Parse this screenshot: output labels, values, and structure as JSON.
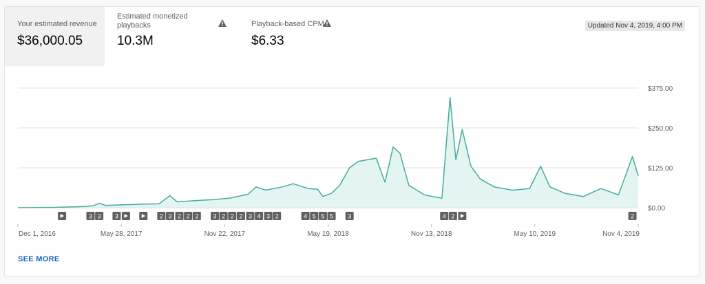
{
  "metrics": [
    {
      "label": "Your estimated revenue",
      "value": "$36,000.05",
      "selected": true,
      "warning": false
    },
    {
      "label": "Estimated monetized playbacks",
      "value": "10.3M",
      "selected": false,
      "warning": true
    },
    {
      "label": "Playback-based CPM",
      "value": "$6.33",
      "selected": false,
      "warning": true
    }
  ],
  "updated": "Updated Nov 4, 2019, 4:00 PM",
  "see_more": "SEE MORE",
  "colors": {
    "line": "#42ad9e",
    "fill": "#e3f4f1",
    "grid": "#e0e0e0",
    "marker": "#606060"
  },
  "chart_data": {
    "type": "area",
    "y_ticks": [
      "$375.00",
      "$250.00",
      "$125.00",
      "$0.00"
    ],
    "y_tick_values": [
      375,
      250,
      125,
      0
    ],
    "ylim": [
      0,
      375
    ],
    "x_ticks": [
      "Dec 1, 2016",
      "May 28, 2017",
      "Nov 22, 2017",
      "May 19, 2018",
      "Nov 13, 2018",
      "May 10, 2019",
      "Nov 4, 2019"
    ],
    "x_range": [
      "2016-12-01",
      "2019-11-04"
    ],
    "series": [
      {
        "points": [
          [
            "2016-12-01",
            0
          ],
          [
            "2017-02-01",
            1
          ],
          [
            "2017-03-15",
            3
          ],
          [
            "2017-04-10",
            6
          ],
          [
            "2017-04-20",
            14
          ],
          [
            "2017-05-01",
            7
          ],
          [
            "2017-06-01",
            9
          ],
          [
            "2017-07-01",
            11
          ],
          [
            "2017-08-01",
            12
          ],
          [
            "2017-08-20",
            38
          ],
          [
            "2017-09-01",
            18
          ],
          [
            "2017-10-01",
            22
          ],
          [
            "2017-11-01",
            25
          ],
          [
            "2017-12-01",
            30
          ],
          [
            "2018-01-01",
            42
          ],
          [
            "2018-01-15",
            65
          ],
          [
            "2018-02-01",
            55
          ],
          [
            "2018-03-01",
            65
          ],
          [
            "2018-03-20",
            75
          ],
          [
            "2018-04-15",
            60
          ],
          [
            "2018-05-01",
            58
          ],
          [
            "2018-05-10",
            35
          ],
          [
            "2018-05-25",
            45
          ],
          [
            "2018-06-08",
            70
          ],
          [
            "2018-06-25",
            125
          ],
          [
            "2018-07-10",
            145
          ],
          [
            "2018-07-25",
            150
          ],
          [
            "2018-08-10",
            155
          ],
          [
            "2018-08-25",
            80
          ],
          [
            "2018-09-08",
            190
          ],
          [
            "2018-09-20",
            170
          ],
          [
            "2018-10-05",
            70
          ],
          [
            "2018-11-01",
            40
          ],
          [
            "2018-11-15",
            35
          ],
          [
            "2018-12-01",
            30
          ],
          [
            "2018-12-15",
            345
          ],
          [
            "2018-12-25",
            150
          ],
          [
            "2019-01-05",
            245
          ],
          [
            "2019-01-20",
            130
          ],
          [
            "2019-02-05",
            90
          ],
          [
            "2019-03-01",
            65
          ],
          [
            "2019-04-01",
            55
          ],
          [
            "2019-05-01",
            60
          ],
          [
            "2019-05-20",
            130
          ],
          [
            "2019-06-05",
            65
          ],
          [
            "2019-07-01",
            45
          ],
          [
            "2019-08-01",
            35
          ],
          [
            "2019-09-01",
            60
          ],
          [
            "2019-10-01",
            40
          ],
          [
            "2019-10-25",
            160
          ],
          [
            "2019-11-04",
            100
          ]
        ]
      }
    ],
    "annotations": [
      {
        "date": "2017-02-15",
        "label": "play"
      },
      {
        "date": "2017-04-05",
        "label": "3"
      },
      {
        "date": "2017-04-20",
        "label": "3"
      },
      {
        "date": "2017-05-20",
        "label": "3"
      },
      {
        "date": "2017-06-05",
        "label": "play"
      },
      {
        "date": "2017-07-05",
        "label": "play"
      },
      {
        "date": "2017-08-05",
        "label": "2"
      },
      {
        "date": "2017-08-20",
        "label": "3"
      },
      {
        "date": "2017-09-05",
        "label": "2"
      },
      {
        "date": "2017-09-20",
        "label": "2"
      },
      {
        "date": "2017-10-05",
        "label": "2"
      },
      {
        "date": "2017-11-05",
        "label": "3"
      },
      {
        "date": "2017-11-20",
        "label": "2"
      },
      {
        "date": "2017-12-05",
        "label": "2"
      },
      {
        "date": "2017-12-20",
        "label": "2"
      },
      {
        "date": "2018-01-05",
        "label": "3"
      },
      {
        "date": "2018-01-20",
        "label": "4"
      },
      {
        "date": "2018-02-05",
        "label": "3"
      },
      {
        "date": "2018-02-20",
        "label": "2"
      },
      {
        "date": "2018-04-10",
        "label": "4"
      },
      {
        "date": "2018-04-25",
        "label": "5"
      },
      {
        "date": "2018-05-10",
        "label": "5"
      },
      {
        "date": "2018-05-25",
        "label": "5"
      },
      {
        "date": "2018-06-25",
        "label": "3"
      },
      {
        "date": "2018-12-05",
        "label": "4"
      },
      {
        "date": "2018-12-20",
        "label": "2"
      },
      {
        "date": "2019-01-05",
        "label": "play"
      },
      {
        "date": "2019-10-25",
        "label": "2"
      }
    ],
    "grid": true
  }
}
